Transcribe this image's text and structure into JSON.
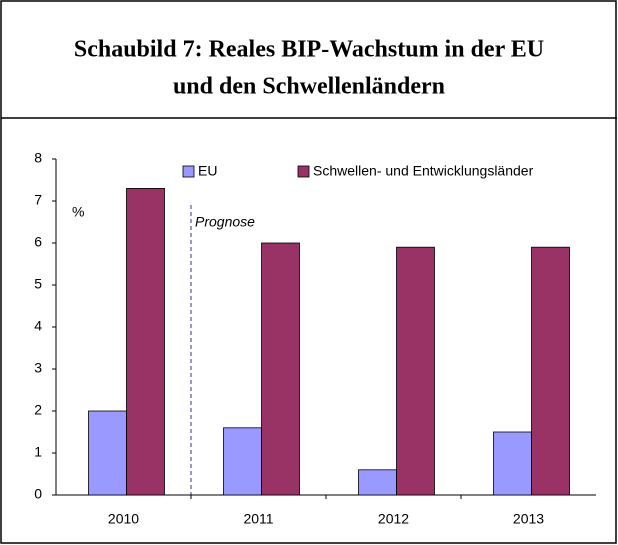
{
  "chart_data": {
    "type": "bar",
    "title": [
      "Schaubild 7: Reales BIP-Wachstum in der EU",
      "und den Schwellenländern"
    ],
    "unit_label": "%",
    "annotation": "Prognose",
    "categories": [
      "2010",
      "2011",
      "2012",
      "2013"
    ],
    "series": [
      {
        "name": "EU",
        "color": "#9999ff",
        "values": [
          2.0,
          1.6,
          0.6,
          1.5
        ]
      },
      {
        "name": "Schwellen- und Entwicklungsländer",
        "color": "#993366",
        "values": [
          7.3,
          6.0,
          5.9,
          5.9
        ]
      }
    ],
    "ylim": [
      0,
      8
    ],
    "yticks": [
      0,
      1,
      2,
      3,
      4,
      5,
      6,
      7,
      8
    ],
    "legend": "top",
    "grid": false
  }
}
